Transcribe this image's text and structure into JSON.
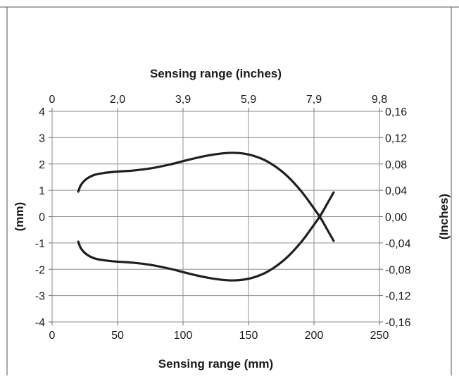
{
  "chart_data": {
    "type": "line",
    "xlabel_bottom": "Sensing range (mm)",
    "xlabel_top": "Sensing range (inches)",
    "ylabel_left": "(mm)",
    "ylabel_right": "(Inches)",
    "xlim": [
      0,
      250
    ],
    "ylim": [
      -4,
      4
    ],
    "grid": true,
    "x_ticks_bottom": [
      "0",
      "50",
      "100",
      "150",
      "200",
      "250"
    ],
    "x_ticks_top": [
      "0",
      "2,0",
      "3,9",
      "5,9",
      "7,9",
      "9,8"
    ],
    "y_ticks_left": [
      "4",
      "3",
      "2",
      "1",
      "0",
      "-1",
      "-2",
      "-3",
      "-4"
    ],
    "y_ticks_right": [
      "0,16",
      "0,12",
      "0,08",
      "0,04",
      "0,00",
      "-0,04",
      "-0,08",
      "-0,12",
      "-0,16"
    ],
    "series": [
      {
        "color": "#1f1f1f",
        "x": [
          20,
          22,
          26,
          32,
          40,
          50,
          62,
          75,
          90,
          105,
          120,
          135,
          148,
          160,
          170,
          180,
          190,
          198,
          205,
          210,
          215
        ],
        "y": [
          0.95,
          1.2,
          1.42,
          1.58,
          1.66,
          1.71,
          1.75,
          1.83,
          1.98,
          2.17,
          2.33,
          2.42,
          2.38,
          2.2,
          1.92,
          1.52,
          0.98,
          0.45,
          -0.05,
          -0.48,
          -0.92
        ]
      },
      {
        "color": "#1f1f1f",
        "x": [
          20,
          22,
          26,
          32,
          40,
          50,
          62,
          75,
          90,
          105,
          120,
          135,
          148,
          160,
          170,
          180,
          190,
          198,
          205,
          210,
          215
        ],
        "y": [
          -0.95,
          -1.2,
          -1.42,
          -1.58,
          -1.66,
          -1.71,
          -1.75,
          -1.83,
          -1.98,
          -2.17,
          -2.33,
          -2.42,
          -2.38,
          -2.2,
          -1.92,
          -1.52,
          -0.98,
          -0.45,
          0.05,
          0.48,
          0.92
        ]
      }
    ]
  }
}
